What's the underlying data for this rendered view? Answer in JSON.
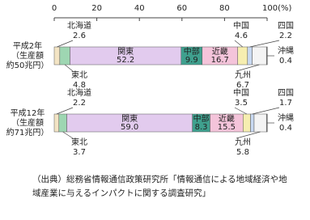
{
  "chart_data": {
    "type": "stacked-bar-horizontal",
    "categories": [
      "平成2年",
      "平成12年"
    ],
    "category_notes": [
      [
        "（生産額",
        "約50兆円）"
      ],
      [
        "（生産額",
        "約71兆円）"
      ]
    ],
    "xlim": [
      0,
      100
    ],
    "xticks": [
      0,
      20,
      40,
      60,
      80,
      {
        "value": 100,
        "label": "100(%)"
      }
    ],
    "series": [
      {
        "name": "北海道",
        "color": "#f3e4c4",
        "values": [
          2.6,
          2.2
        ]
      },
      {
        "name": "東北",
        "color": "#9ed6b2",
        "values": [
          4.8,
          3.7
        ]
      },
      {
        "name": "関東",
        "color": "#e2cbee",
        "values": [
          52.2,
          59.0
        ],
        "value_labels": [
          "52.2",
          "59.0"
        ]
      },
      {
        "name": "中部",
        "color": "#3fa08e",
        "values": [
          9.9,
          8.3
        ]
      },
      {
        "name": "近畿",
        "color": "#f4c4da",
        "values": [
          16.7,
          15.5
        ]
      },
      {
        "name": "中国",
        "color": "#f6eeb0",
        "values": [
          4.6,
          3.5
        ]
      },
      {
        "name": "四国",
        "color": "#c9d9f1",
        "values": [
          2.2,
          1.7
        ]
      },
      {
        "name": "九州",
        "color": "#f4f4f4",
        "values": [
          6.7,
          5.8
        ]
      },
      {
        "name": "沖縄",
        "color": "#8a8a8a",
        "values": [
          0.4,
          0.4
        ]
      }
    ],
    "source": "（出典）総務省情報通信政策研究所「情報通信による地域経済や地域産業に与えるインパクトに関する調査研究」"
  }
}
